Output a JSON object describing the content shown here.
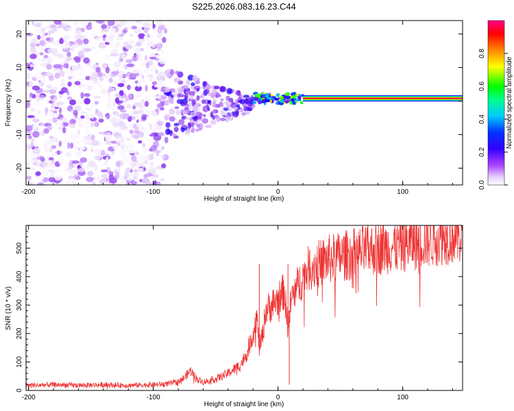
{
  "title": "S225.2026.083.16.23.C44",
  "colors": {
    "snr_line": "#ee3333",
    "background": "#ffffff",
    "colormap": [
      "#ffffff",
      "#e8d8f8",
      "#cc99ff",
      "#8833ee",
      "#5500ee",
      "#0000ff",
      "#00ccff",
      "#00ff00",
      "#ffff00",
      "#ff8800",
      "#ff0000",
      "#ff0080"
    ]
  },
  "chart_data": [
    {
      "type": "heatmap",
      "xlabel": "Height of straight line (km)",
      "ylabel": "Frequency (Hz)",
      "xlim": [
        -202,
        148
      ],
      "ylim": [
        -25,
        24
      ],
      "xticks": [
        -200,
        -100,
        0,
        100
      ],
      "yticks": [
        -20,
        -10,
        0,
        10,
        20
      ],
      "colorbar": {
        "label": "Normalized spectral amplitude",
        "range": [
          0,
          1
        ],
        "ticks": [
          "0.0",
          "0.2",
          "0.4",
          "0.6",
          "0.8"
        ]
      },
      "regions": [
        {
          "name": "noise",
          "x": [
            -202,
            -90
          ],
          "y": [
            -25,
            24
          ],
          "amplitude": [
            0.02,
            0.3
          ]
        },
        {
          "name": "transition",
          "x": [
            -90,
            -20
          ],
          "y": [
            -10,
            6
          ],
          "amplitude": [
            0.1,
            0.45
          ]
        },
        {
          "name": "converging",
          "x": [
            -20,
            20
          ],
          "y": [
            -1,
            3
          ],
          "amplitude": [
            0.3,
            0.75
          ]
        },
        {
          "name": "carrier",
          "x": [
            20,
            148
          ],
          "y": [
            0.8,
            0.8
          ],
          "amplitude": [
            0.85,
            1.0
          ]
        }
      ]
    },
    {
      "type": "line",
      "xlabel": "Height of straight line (km)",
      "ylabel": "SNR (10 * v/v)",
      "xlim": [
        -202,
        148
      ],
      "ylim": [
        0,
        580
      ],
      "xticks": [
        -200,
        -100,
        0,
        100
      ],
      "yticks": [
        0,
        100,
        200,
        300,
        400,
        500
      ],
      "series": [
        {
          "name": "SNR",
          "x": [
            -202,
            -180,
            -160,
            -140,
            -120,
            -100,
            -90,
            -80,
            -75,
            -70,
            -65,
            -60,
            -50,
            -40,
            -30,
            -25,
            -20,
            -17,
            -15,
            -12,
            -10,
            -5,
            0,
            5,
            8,
            10,
            12,
            15,
            20,
            25,
            30,
            40,
            50,
            60,
            70,
            80,
            90,
            100,
            110,
            120,
            130,
            140,
            148
          ],
          "y": [
            18,
            20,
            18,
            20,
            18,
            20,
            22,
            30,
            45,
            70,
            40,
            30,
            40,
            60,
            90,
            130,
            200,
            260,
            150,
            200,
            280,
            300,
            320,
            350,
            220,
            300,
            340,
            360,
            400,
            430,
            440,
            460,
            470,
            480,
            490,
            500,
            505,
            510,
            520,
            530,
            540,
            545,
            540
          ],
          "spikes": [
            {
              "x": -15,
              "y": 445
            },
            {
              "x": 8,
              "y": 445
            },
            {
              "x": 9,
              "y": 20
            },
            {
              "x": 108,
              "y": 570
            },
            {
              "x": 120,
              "y": 570
            },
            {
              "x": 135,
              "y": 575
            }
          ]
        }
      ]
    }
  ]
}
